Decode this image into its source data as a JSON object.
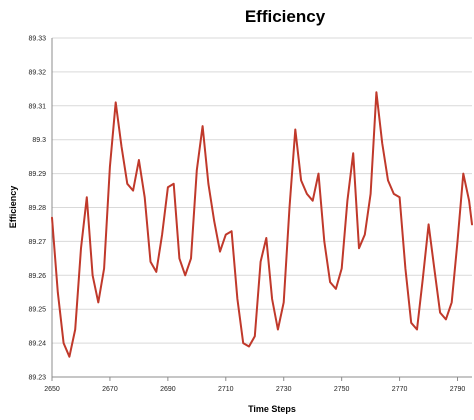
{
  "chart_data": {
    "type": "line",
    "title": "Efficiency",
    "xlabel": "Time Steps",
    "ylabel": "Efficiency",
    "xlim": [
      2650,
      2795
    ],
    "ylim": [
      89.23,
      89.33
    ],
    "x_ticks": [
      2650,
      2670,
      2690,
      2710,
      2730,
      2750,
      2770,
      2790
    ],
    "y_ticks": [
      89.23,
      89.24,
      89.25,
      89.26,
      89.27,
      89.28,
      89.29,
      89.3,
      89.31,
      89.32,
      89.33
    ],
    "y_tick_labels": [
      "89.23",
      "89.24",
      "89.25",
      "89.26",
      "89.27",
      "89.28",
      "89.29",
      "89.3",
      "89.31",
      "89.32",
      "89.33"
    ],
    "grid": "horizontal",
    "legend": "none",
    "series": [
      {
        "color": "#c0392b",
        "x": [
          2650,
          2652,
          2654,
          2656,
          2658,
          2660,
          2662,
          2664,
          2666,
          2668,
          2670,
          2672,
          2674,
          2676,
          2678,
          2680,
          2682,
          2684,
          2686,
          2688,
          2690,
          2692,
          2694,
          2696,
          2698,
          2700,
          2702,
          2704,
          2706,
          2708,
          2710,
          2712,
          2714,
          2716,
          2718,
          2720,
          2722,
          2724,
          2726,
          2728,
          2730,
          2732,
          2734,
          2736,
          2738,
          2740,
          2742,
          2744,
          2746,
          2748,
          2750,
          2752,
          2754,
          2756,
          2758,
          2760,
          2762,
          2764,
          2766,
          2768,
          2770,
          2772,
          2774,
          2776,
          2778,
          2780,
          2782,
          2784,
          2786,
          2788,
          2790,
          2792,
          2794,
          2795
        ],
        "values": [
          89.277,
          89.255,
          89.24,
          89.236,
          89.244,
          89.268,
          89.283,
          89.26,
          89.252,
          89.262,
          89.292,
          89.311,
          89.298,
          89.287,
          89.285,
          89.294,
          89.283,
          89.264,
          89.261,
          89.272,
          89.286,
          89.287,
          89.265,
          89.26,
          89.265,
          89.291,
          89.304,
          89.287,
          89.276,
          89.267,
          89.272,
          89.273,
          89.253,
          89.24,
          89.239,
          89.242,
          89.264,
          89.271,
          89.253,
          89.244,
          89.252,
          89.28,
          89.303,
          89.288,
          89.284,
          89.282,
          89.29,
          89.27,
          89.258,
          89.256,
          89.262,
          89.282,
          89.296,
          89.268,
          89.272,
          89.284,
          89.314,
          89.299,
          89.288,
          89.284,
          89.283,
          89.262,
          89.246,
          89.244,
          89.259,
          89.275,
          89.262,
          89.249,
          89.247,
          89.252,
          89.27,
          89.29,
          89.282,
          89.275
        ]
      }
    ]
  }
}
